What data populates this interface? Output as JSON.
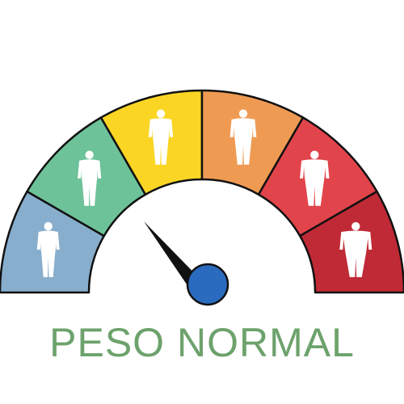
{
  "gauge": {
    "segments": [
      {
        "color": "#88aecd",
        "figure": "slim-figure-icon"
      },
      {
        "color": "#6dc29a",
        "figure": "lean-figure-icon"
      },
      {
        "color": "#fad524",
        "figure": "normal-figure-icon"
      },
      {
        "color": "#ef9a53",
        "figure": "overweight-figure-icon"
      },
      {
        "color": "#e2444b",
        "figure": "obese-figure-icon"
      },
      {
        "color": "#c02a36",
        "figure": "very-obese-figure-icon"
      }
    ],
    "needle_fraction": 0.2,
    "needle_color": "#111111",
    "hub_color": "#2a6bbf",
    "outline_color": "#111111"
  },
  "label": {
    "text": "PESO NORMAL",
    "color": "#6da26c"
  }
}
